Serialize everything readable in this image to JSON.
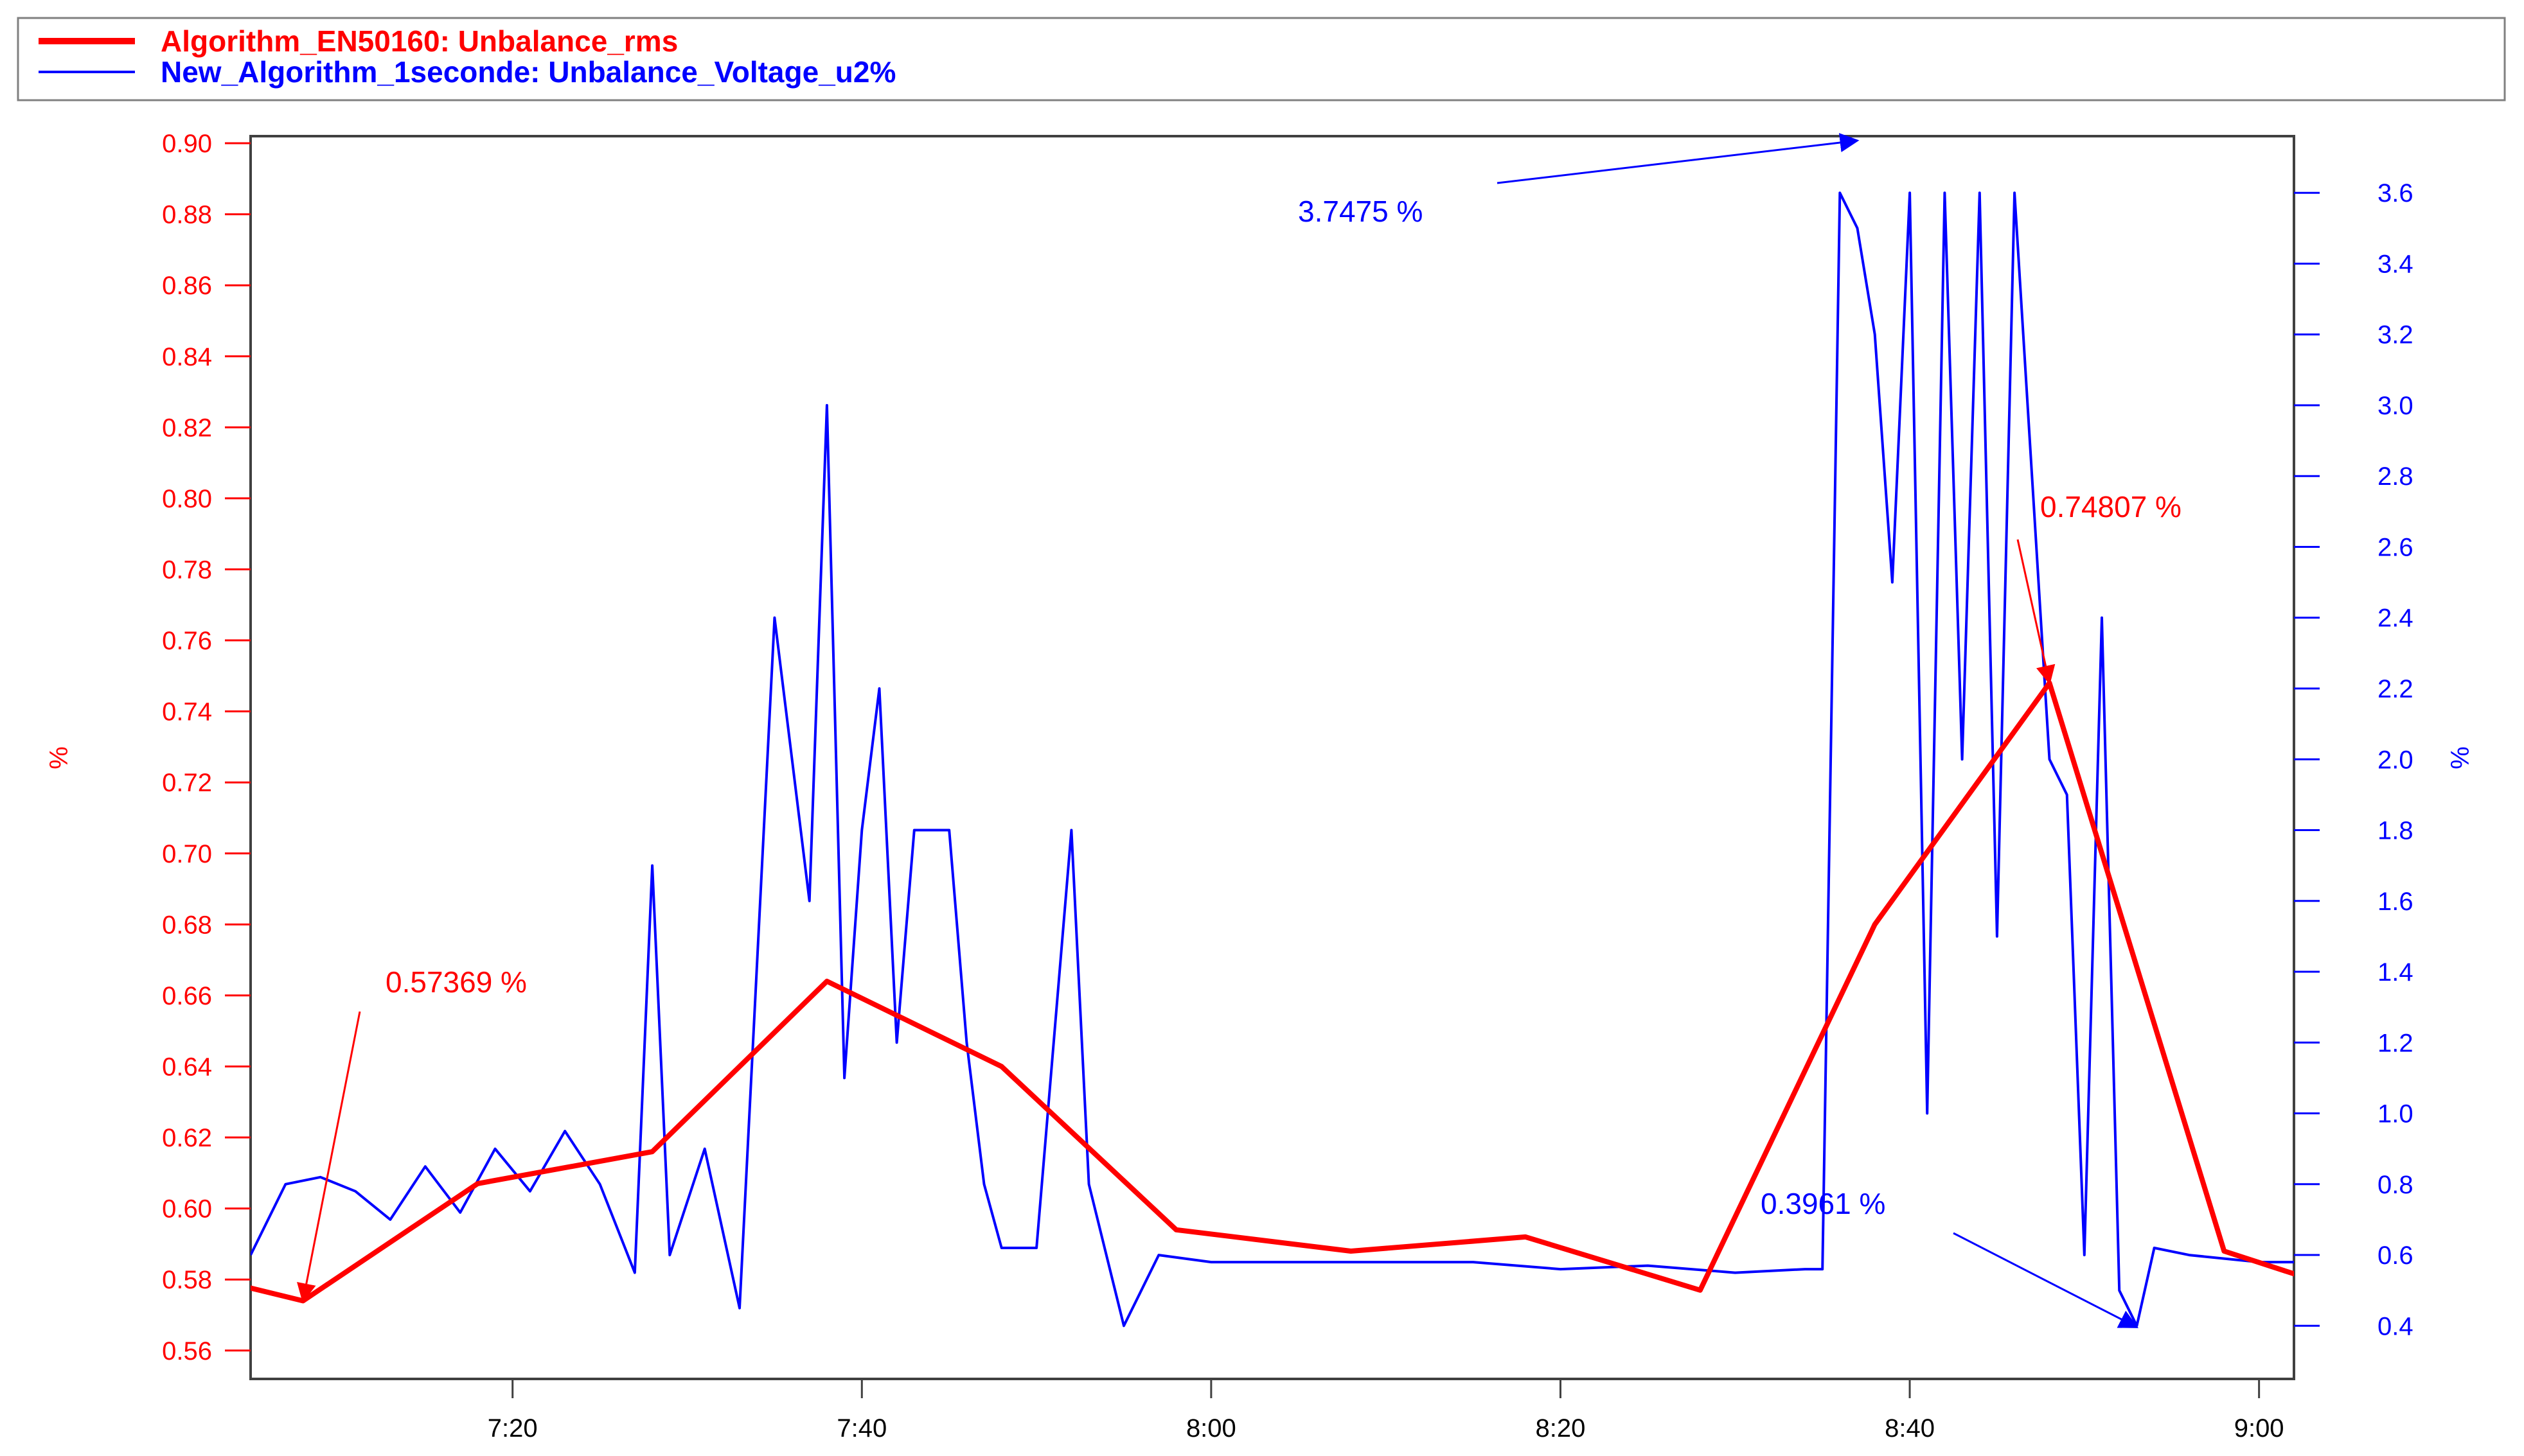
{
  "chart_data": {
    "type": "line",
    "legend": {
      "placement": "top",
      "entries": [
        {
          "label": "Algorithm_EN50160: Unbalance_rms",
          "color": "#ff0000"
        },
        {
          "label": "New_Algorithm_1seconde: Unbalance_Voltage_u2%",
          "color": "#0000ff"
        }
      ]
    },
    "x": {
      "range": [
        "7:05",
        "9:02"
      ],
      "ticks": [
        "7:20",
        "7:40",
        "8:00",
        "8:20",
        "8:40",
        "9:00"
      ]
    },
    "y_left": {
      "label": "%",
      "range": [
        0.552,
        0.902
      ],
      "ticks": [
        "0.90",
        "0.88",
        "0.86",
        "0.84",
        "0.82",
        "0.80",
        "0.78",
        "0.76",
        "0.74",
        "0.72",
        "0.70",
        "0.68",
        "0.66",
        "0.64",
        "0.62",
        "0.60",
        "0.58",
        "0.56"
      ],
      "color": "#ff0000"
    },
    "y_right": {
      "label": "%",
      "range": [
        0.25,
        3.76
      ],
      "ticks": [
        "3.6",
        "3.4",
        "3.2",
        "3.0",
        "2.8",
        "2.6",
        "2.4",
        "2.2",
        "2.0",
        "1.8",
        "1.6",
        "1.4",
        "1.2",
        "1.0",
        "0.8",
        "0.6",
        "0.4"
      ],
      "color": "#0000ff"
    },
    "series": [
      {
        "name": "Algorithm_EN50160: Unbalance_rms",
        "color": "#ff0000",
        "axis": "left",
        "points": [
          [
            "7:03",
            0.58
          ],
          [
            "7:08",
            0.574
          ],
          [
            "7:18",
            0.607
          ],
          [
            "7:28",
            0.616
          ],
          [
            "7:38",
            0.664
          ],
          [
            "7:48",
            0.64
          ],
          [
            "7:58",
            0.594
          ],
          [
            "8:08",
            0.588
          ],
          [
            "8:18",
            0.592
          ],
          [
            "8:28",
            0.577
          ],
          [
            "8:38",
            0.68
          ],
          [
            "8:48",
            0.748
          ],
          [
            "8:58",
            0.588
          ],
          [
            "9:03",
            0.58
          ]
        ]
      },
      {
        "name": "New_Algorithm_1seconde: Unbalance_Voltage_u2%",
        "color": "#0000ff",
        "axis": "right",
        "points": [
          [
            "7:05",
            0.6
          ],
          [
            "7:07",
            0.8
          ],
          [
            "7:09",
            0.82
          ],
          [
            "7:11",
            0.78
          ],
          [
            "7:13",
            0.7
          ],
          [
            "7:15",
            0.85
          ],
          [
            "7:17",
            0.72
          ],
          [
            "7:19",
            0.9
          ],
          [
            "7:21",
            0.78
          ],
          [
            "7:23",
            0.95
          ],
          [
            "7:25",
            0.8
          ],
          [
            "7:27",
            0.55
          ],
          [
            "7:28",
            1.7
          ],
          [
            "7:29",
            0.6
          ],
          [
            "7:31",
            0.9
          ],
          [
            "7:33",
            0.45
          ],
          [
            "7:35",
            2.4
          ],
          [
            "7:36",
            2.0
          ],
          [
            "7:37",
            1.6
          ],
          [
            "7:38",
            3.0
          ],
          [
            "7:39",
            1.1
          ],
          [
            "7:40",
            1.8
          ],
          [
            "7:41",
            2.2
          ],
          [
            "7:42",
            1.2
          ],
          [
            "7:43",
            1.8
          ],
          [
            "7:45",
            1.8
          ],
          [
            "7:46",
            1.2
          ],
          [
            "7:47",
            0.8
          ],
          [
            "7:48",
            0.62
          ],
          [
            "7:50",
            0.62
          ],
          [
            "7:52",
            1.8
          ],
          [
            "7:53",
            0.8
          ],
          [
            "7:54",
            0.6
          ],
          [
            "7:55",
            0.4
          ],
          [
            "7:57",
            0.6
          ],
          [
            "8:00",
            0.58
          ],
          [
            "8:05",
            0.58
          ],
          [
            "8:10",
            0.58
          ],
          [
            "8:15",
            0.58
          ],
          [
            "8:20",
            0.56
          ],
          [
            "8:25",
            0.57
          ],
          [
            "8:30",
            0.55
          ],
          [
            "8:34",
            0.56
          ],
          [
            "8:35",
            0.56
          ],
          [
            "8:36",
            3.6
          ],
          [
            "8:37",
            3.5
          ],
          [
            "8:38",
            3.2
          ],
          [
            "8:39",
            2.5
          ],
          [
            "8:40",
            3.6
          ],
          [
            "8:41",
            1.0
          ],
          [
            "8:42",
            3.6
          ],
          [
            "8:43",
            2.0
          ],
          [
            "8:44",
            3.6
          ],
          [
            "8:45",
            1.5
          ],
          [
            "8:46",
            3.6
          ],
          [
            "8:47",
            2.8
          ],
          [
            "8:48",
            2.0
          ],
          [
            "8:49",
            1.9
          ],
          [
            "8:50",
            0.6
          ],
          [
            "8:51",
            2.4
          ],
          [
            "8:52",
            0.5
          ],
          [
            "8:53",
            0.4
          ],
          [
            "8:54",
            0.62
          ],
          [
            "8:56",
            0.6
          ],
          [
            "9:00",
            0.58
          ],
          [
            "9:03",
            0.58
          ]
        ]
      }
    ],
    "annotations": [
      {
        "text": "0.57369 %",
        "color": "#ff0000",
        "axis": "left",
        "x": "7:08",
        "y": 0.574
      },
      {
        "text": "3.7475 %",
        "color": "#0000ff",
        "axis": "right",
        "x": "8:37",
        "y": 3.7475
      },
      {
        "text": "0.74807 %",
        "color": "#ff0000",
        "axis": "left",
        "x": "8:48",
        "y": 0.748
      },
      {
        "text": "0.3961 %",
        "color": "#0000ff",
        "axis": "right",
        "x": "8:53",
        "y": 0.3961
      }
    ],
    "grid": false
  }
}
